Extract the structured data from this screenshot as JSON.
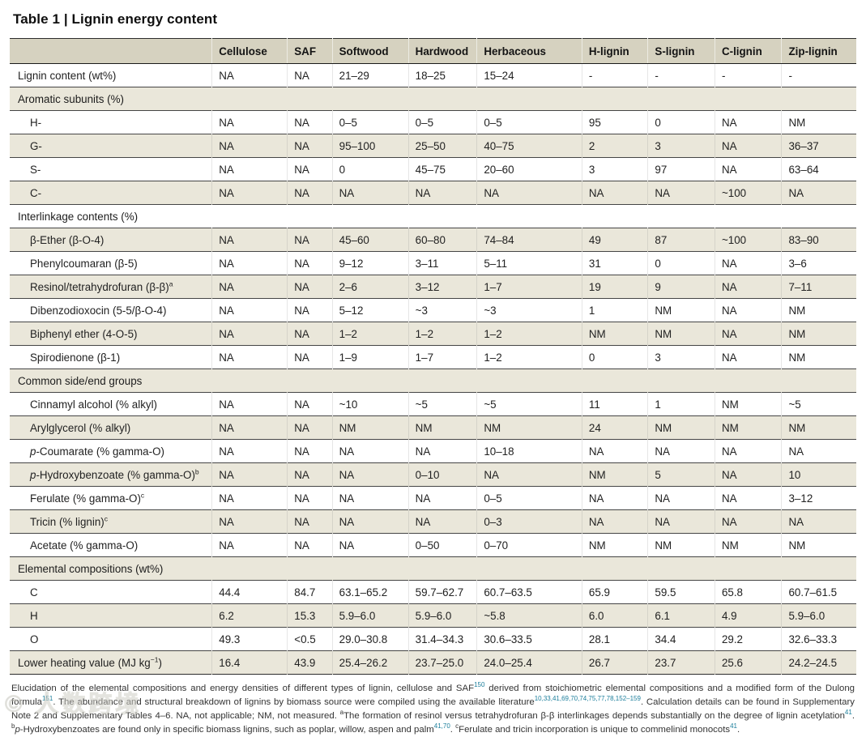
{
  "title": "Table 1 | Lignin energy content",
  "watermark": "© 人数跨境",
  "colors": {
    "header_bg": "#d6d2c0",
    "stripe_bg": "#eae7da",
    "rule": "#2c2c2c",
    "citation_ref": "#1d7f9c"
  },
  "table": {
    "columns": [
      "",
      "Cellulose",
      "SAF",
      "Softwood",
      "Hardwood",
      "Herbaceous",
      "H-lignin",
      "S-lignin",
      "C-lignin",
      "Zip-lignin"
    ],
    "col_widths_pct": [
      23.9,
      8.9,
      5.3,
      9.0,
      8.1,
      12.4,
      7.8,
      7.9,
      7.9,
      8.8
    ],
    "rows": [
      {
        "type": "data",
        "label": "Lignin content (wt%)",
        "indent": false,
        "values": [
          "NA",
          "NA",
          "21–29",
          "18–25",
          "15–24",
          "-",
          "-",
          "-",
          "-"
        ]
      },
      {
        "type": "section",
        "label": "Aromatic subunits (%)"
      },
      {
        "type": "data",
        "label": "H-",
        "indent": true,
        "values": [
          "NA",
          "NA",
          "0–5",
          "0–5",
          "0–5",
          "95",
          "0",
          "NA",
          "NM"
        ]
      },
      {
        "type": "data",
        "label": "G-",
        "indent": true,
        "values": [
          "NA",
          "NA",
          "95–100",
          "25–50",
          "40–75",
          "2",
          "3",
          "NA",
          "36–37"
        ]
      },
      {
        "type": "data",
        "label": "S-",
        "indent": true,
        "values": [
          "NA",
          "NA",
          "0",
          "45–75",
          "20–60",
          "3",
          "97",
          "NA",
          "63–64"
        ]
      },
      {
        "type": "data",
        "label": "C-",
        "indent": true,
        "values": [
          "NA",
          "NA",
          "NA",
          "NA",
          "NA",
          "NA",
          "NA",
          "~100",
          "NA"
        ]
      },
      {
        "type": "section",
        "label": "Interlinkage contents (%)"
      },
      {
        "type": "data",
        "label": "β-Ether (β-O-4)",
        "indent": true,
        "values": [
          "NA",
          "NA",
          "45–60",
          "60–80",
          "74–84",
          "49",
          "87",
          "~100",
          "83–90"
        ]
      },
      {
        "type": "data",
        "label": "Phenylcoumaran (β-5)",
        "indent": true,
        "values": [
          "NA",
          "NA",
          "9–12",
          "3–11",
          "5–11",
          "31",
          "0",
          "NA",
          "3–6"
        ]
      },
      {
        "type": "data",
        "label": "Resinol/tetrahydrofuran (β-β)^{a}",
        "indent": true,
        "values": [
          "NA",
          "NA",
          "2–6",
          "3–12",
          "1–7",
          "19",
          "9",
          "NA",
          "7–11"
        ]
      },
      {
        "type": "data",
        "label": "Dibenzodioxocin (5-5/β-O-4)",
        "indent": true,
        "values": [
          "NA",
          "NA",
          "5–12",
          "~3",
          "~3",
          "1",
          "NM",
          "NA",
          "NM"
        ]
      },
      {
        "type": "data",
        "label": "Biphenyl ether (4-O-5)",
        "indent": true,
        "values": [
          "NA",
          "NA",
          "1–2",
          "1–2",
          "1–2",
          "NM",
          "NM",
          "NA",
          "NM"
        ]
      },
      {
        "type": "data",
        "label": "Spirodienone (β-1)",
        "indent": true,
        "values": [
          "NA",
          "NA",
          "1–9",
          "1–7",
          "1–2",
          "0",
          "3",
          "NA",
          "NM"
        ]
      },
      {
        "type": "section",
        "label": "Common side/end groups"
      },
      {
        "type": "data",
        "label": "Cinnamyl alcohol (% alkyl)",
        "indent": true,
        "values": [
          "NA",
          "NA",
          "~10",
          "~5",
          "~5",
          "11",
          "1",
          "NM",
          "~5"
        ]
      },
      {
        "type": "data",
        "label": "Arylglycerol (% alkyl)",
        "indent": true,
        "values": [
          "NA",
          "NA",
          "NM",
          "NM",
          "NM",
          "24",
          "NM",
          "NM",
          "NM"
        ]
      },
      {
        "type": "data",
        "label": "*p*-Coumarate (% gamma-O)",
        "indent": true,
        "values": [
          "NA",
          "NA",
          "NA",
          "NA",
          "10–18",
          "NA",
          "NA",
          "NA",
          "NA"
        ]
      },
      {
        "type": "data",
        "label": "*p*-Hydroxybenzoate (% gamma-O)^{b}",
        "indent": true,
        "values": [
          "NA",
          "NA",
          "NA",
          "0–10",
          "NA",
          "NM",
          "5",
          "NA",
          "10"
        ]
      },
      {
        "type": "data",
        "label": "Ferulate (% gamma-O)^{c}",
        "indent": true,
        "values": [
          "NA",
          "NA",
          "NA",
          "NA",
          "0–5",
          "NA",
          "NA",
          "NA",
          "3–12"
        ]
      },
      {
        "type": "data",
        "label": "Tricin (% lignin)^{c}",
        "indent": true,
        "values": [
          "NA",
          "NA",
          "NA",
          "NA",
          "0–3",
          "NA",
          "NA",
          "NA",
          "NA"
        ]
      },
      {
        "type": "data",
        "label": "Acetate (% gamma-O)",
        "indent": true,
        "values": [
          "NA",
          "NA",
          "NA",
          "0–50",
          "0–70",
          "NM",
          "NM",
          "NM",
          "NM"
        ]
      },
      {
        "type": "section",
        "label": "Elemental compositions (wt%)"
      },
      {
        "type": "data",
        "label": "C",
        "indent": true,
        "values": [
          "44.4",
          "84.7",
          "63.1–65.2",
          "59.7–62.7",
          "60.7–63.5",
          "65.9",
          "59.5",
          "65.8",
          "60.7–61.5"
        ]
      },
      {
        "type": "data",
        "label": "H",
        "indent": true,
        "values": [
          "6.2",
          "15.3",
          "5.9–6.0",
          "5.9–6.0",
          "~5.8",
          "6.0",
          "6.1",
          "4.9",
          "5.9–6.0"
        ]
      },
      {
        "type": "data",
        "label": "O",
        "indent": true,
        "values": [
          "49.3",
          "<0.5",
          "29.0–30.8",
          "31.4–34.3",
          "30.6–33.5",
          "28.1",
          "34.4",
          "29.2",
          "32.6–33.3"
        ]
      },
      {
        "type": "data",
        "label": "Lower heating value (MJ kg^{−1})",
        "indent": false,
        "values": [
          "16.4",
          "43.9",
          "25.4–26.2",
          "23.7–25.0",
          "24.0–25.4",
          "26.7",
          "23.7",
          "25.6",
          "24.2–24.5"
        ]
      }
    ]
  },
  "footnote": {
    "segments": [
      {
        "t": "Elucidation of the elemental compositions and energy densities of different types of lignin, cellulose and SAF"
      },
      {
        "sup": "150",
        "teal": true
      },
      {
        "t": " derived from stoichiometric elemental compositions and a modified form of the Dulong formula"
      },
      {
        "sup": "151",
        "teal": true
      },
      {
        "t": ". The abundance and structural breakdown of lignins by biomass source were compiled using the available literature"
      },
      {
        "sup": "10,33,41,69,70,74,75,77,78,152–159",
        "teal": true
      },
      {
        "t": ". Calculation details can be found in Supplementary Note 2 and Supplementary Tables 4–6. NA, not applicable; NM, not measured. "
      },
      {
        "sup": "a",
        "teal": false
      },
      {
        "t": "The formation of resinol versus tetrahydrofuran β-β interlinkages depends substantially on the degree of lignin acetylation"
      },
      {
        "sup": "41",
        "teal": true
      },
      {
        "t": ". "
      },
      {
        "sup": "b",
        "teal": false
      },
      {
        "t": "p",
        "i": true
      },
      {
        "t": "-Hydroxybenzoates are found only in specific biomass lignins, such as poplar, willow, aspen and palm"
      },
      {
        "sup": "41,70",
        "teal": true
      },
      {
        "t": ". "
      },
      {
        "sup": "c",
        "teal": false
      },
      {
        "t": "Ferulate and tricin incorporation is unique to commelinid monocots"
      },
      {
        "sup": "41",
        "teal": true
      },
      {
        "t": "."
      }
    ]
  }
}
